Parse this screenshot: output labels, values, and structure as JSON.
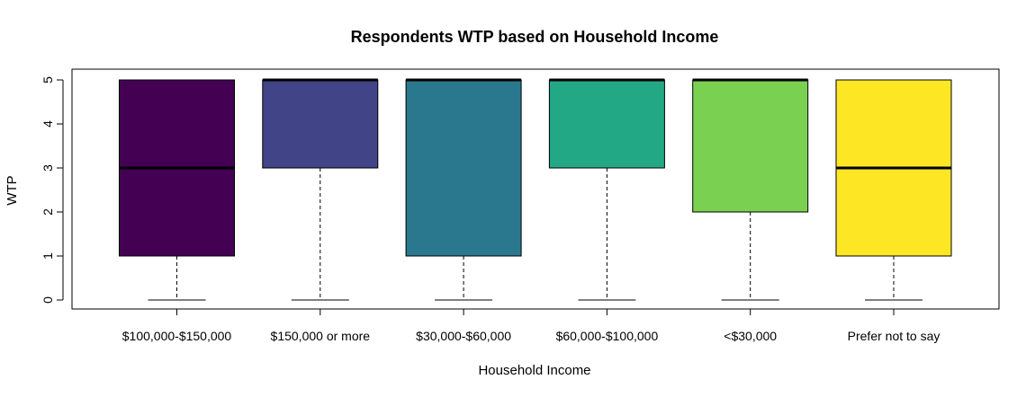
{
  "chart_data": {
    "type": "boxplot",
    "title": "Respondents WTP based on Household Income",
    "xlabel": "Household Income",
    "ylabel": "WTP",
    "ylim": [
      0,
      5
    ],
    "yticks": [
      "0",
      "1",
      "2",
      "3",
      "4",
      "5"
    ],
    "categories": [
      "$100,000-$150,000",
      "$150,000 or more",
      "$30,000-$60,000",
      "$60,000-$100,000",
      "<$30,000",
      "Prefer not to say"
    ],
    "boxes": [
      {
        "min": 0,
        "q1": 1,
        "median": 3,
        "q3": 5,
        "max": 5,
        "color": "#440154"
      },
      {
        "min": 0,
        "q1": 3,
        "median": 5,
        "q3": 5,
        "max": 5,
        "color": "#414487"
      },
      {
        "min": 0,
        "q1": 1,
        "median": 5,
        "q3": 5,
        "max": 5,
        "color": "#2A788E"
      },
      {
        "min": 0,
        "q1": 3,
        "median": 5,
        "q3": 5,
        "max": 5,
        "color": "#22A884"
      },
      {
        "min": 0,
        "q1": 2,
        "median": 5,
        "q3": 5,
        "max": 5,
        "color": "#7AD151"
      },
      {
        "min": 0,
        "q1": 1,
        "median": 3,
        "q3": 5,
        "max": 5,
        "color": "#FDE725"
      }
    ],
    "grid": false,
    "legend": "none"
  }
}
